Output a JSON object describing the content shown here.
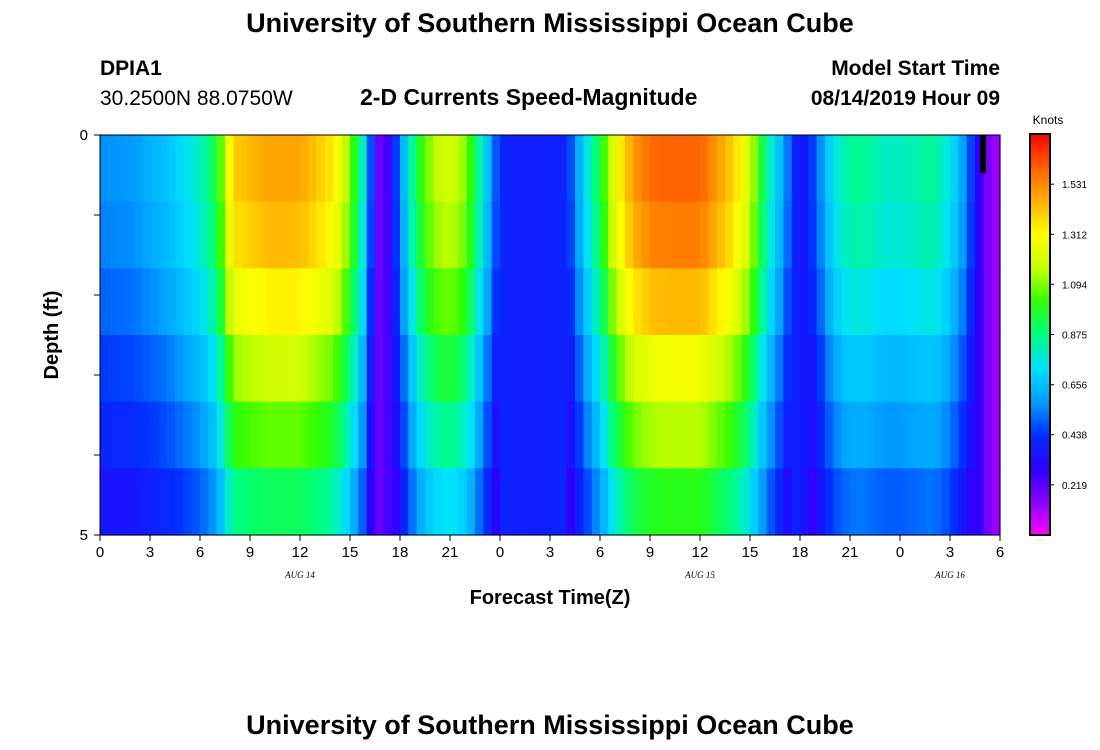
{
  "page": {
    "title": "University of Southern Mississippi Ocean Cube",
    "footer_title": "University of Southern Mississippi Ocean Cube",
    "station_id": "DPIA1",
    "station_coords": "30.2500N 88.0750W",
    "plot_title": "2-D Currents Speed-Magnitude",
    "model_start_label": "Model Start Time",
    "model_start_value": "08/14/2019 Hour 09"
  },
  "chart_data": {
    "type": "heatmap",
    "title": "2-D Currents Speed-Magnitude",
    "xlabel": "Forecast Time(Z)",
    "ylabel": "Depth (ft)",
    "x_tick_labels": [
      "0",
      "3",
      "6",
      "9",
      "12",
      "15",
      "18",
      "21",
      "0",
      "3",
      "6",
      "9",
      "12",
      "15",
      "18",
      "21",
      "0",
      "3",
      "6"
    ],
    "x_hours": [
      0,
      3,
      6,
      9,
      12,
      15,
      18,
      21,
      24,
      27,
      30,
      33,
      36,
      39,
      42,
      45,
      48,
      51,
      54
    ],
    "day_labels": [
      {
        "label": "AUG 14",
        "hour": 12
      },
      {
        "label": "AUG 15",
        "hour": 36
      },
      {
        "label": "AUG 16",
        "hour": 51
      }
    ],
    "y_tick_labels": [
      "0",
      "5"
    ],
    "ylim": [
      0,
      5
    ],
    "depth_layers": [
      0.5,
      1.5,
      2.5,
      3.5,
      4.5
    ],
    "colorbar": {
      "unit": "Knots",
      "tick_labels": [
        "1.531",
        "1.312",
        "1.094",
        "0.875",
        "0.656",
        "0.438",
        "0.219"
      ],
      "tick_values": [
        1.531,
        1.312,
        1.094,
        0.875,
        0.656,
        0.438,
        0.219
      ],
      "range": [
        0.0,
        1.75
      ],
      "colors": [
        "#ff00ff",
        "#8a00ff",
        "#2a00ff",
        "#0030ff",
        "#00a0ff",
        "#00e0ff",
        "#00ff80",
        "#30ff00",
        "#c8ff00",
        "#ffff00",
        "#ffb000",
        "#ff6000",
        "#ff0000"
      ]
    },
    "profile_hours": [
      0,
      2,
      4,
      6,
      7,
      8,
      10,
      12,
      14,
      15,
      16,
      16.5,
      17,
      18,
      19,
      20,
      21,
      22,
      23,
      24,
      26,
      28,
      29,
      30,
      31,
      32,
      33,
      34,
      36,
      38,
      39,
      40,
      41,
      42,
      43,
      44,
      45,
      46,
      47,
      48,
      50,
      51,
      52,
      53,
      54
    ],
    "profile_values": [
      0.56,
      0.58,
      0.66,
      0.8,
      0.95,
      1.4,
      1.48,
      1.48,
      1.35,
      1.1,
      0.7,
      0.25,
      0.15,
      0.55,
      0.95,
      1.15,
      1.2,
      1.1,
      0.75,
      0.4,
      0.38,
      0.4,
      0.7,
      0.95,
      1.3,
      1.5,
      1.58,
      1.6,
      1.6,
      1.4,
      1.2,
      0.85,
      0.6,
      0.32,
      0.5,
      0.75,
      0.85,
      0.85,
      0.8,
      0.8,
      0.85,
      0.75,
      0.55,
      0.2,
      0.1
    ],
    "depth_factors": [
      1.0,
      0.97,
      0.9,
      0.8,
      0.72,
      0.62
    ],
    "quiet_depth_factors": [
      1.0,
      1.0,
      1.0,
      1.0,
      1.0,
      1.0
    ],
    "quiet_hours": [
      16.5,
      17,
      24,
      26,
      28,
      42,
      53,
      54
    ]
  }
}
